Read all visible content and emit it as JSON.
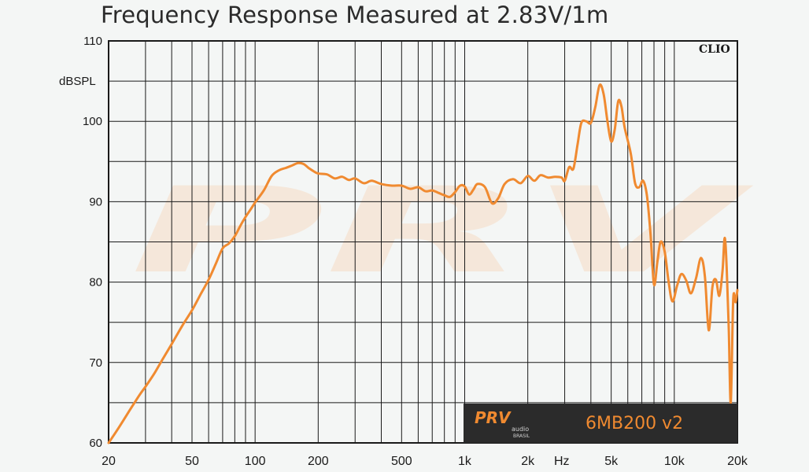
{
  "title": "Frequency Response Measured at 2.83V/1m",
  "chart_data": {
    "type": "line",
    "title": "Frequency Response Measured at 2.83V/1m",
    "xlabel": "Hz",
    "ylabel": "dBSPL",
    "x_scale": "log",
    "xlim": [
      20,
      20000
    ],
    "ylim": [
      60,
      110
    ],
    "grid": true,
    "y_ticks": [
      "110",
      "100",
      "90",
      "80",
      "70",
      "60"
    ],
    "x_ticks": [
      {
        "value": 20,
        "label": "20"
      },
      {
        "value": 50,
        "label": "50"
      },
      {
        "value": 100,
        "label": "100"
      },
      {
        "value": 200,
        "label": "200"
      },
      {
        "value": 500,
        "label": "500"
      },
      {
        "value": 1000,
        "label": "1k"
      },
      {
        "value": 2000,
        "label": "2k"
      },
      {
        "value": 5000,
        "label": "5k"
      },
      {
        "value": 10000,
        "label": "10k"
      },
      {
        "value": 20000,
        "label": "20k"
      }
    ],
    "series": [
      {
        "color": "#f08a30",
        "points": [
          [
            20,
            60.0
          ],
          [
            22,
            61.6
          ],
          [
            25,
            63.9
          ],
          [
            28,
            65.9
          ],
          [
            30,
            67.0
          ],
          [
            33,
            68.6
          ],
          [
            36,
            70.3
          ],
          [
            40,
            72.3
          ],
          [
            45,
            74.6
          ],
          [
            50,
            76.5
          ],
          [
            55,
            78.5
          ],
          [
            60,
            80.3
          ],
          [
            65,
            82.3
          ],
          [
            70,
            84.2
          ],
          [
            75,
            84.8
          ],
          [
            80,
            85.7
          ],
          [
            85,
            87.0
          ],
          [
            90,
            88.1
          ],
          [
            95,
            89.0
          ],
          [
            100,
            89.9
          ],
          [
            110,
            91.4
          ],
          [
            120,
            93.2
          ],
          [
            130,
            93.9
          ],
          [
            140,
            94.2
          ],
          [
            150,
            94.5
          ],
          [
            160,
            94.8
          ],
          [
            170,
            94.7
          ],
          [
            180,
            94.2
          ],
          [
            190,
            93.8
          ],
          [
            200,
            93.5
          ],
          [
            220,
            93.4
          ],
          [
            240,
            92.9
          ],
          [
            260,
            93.1
          ],
          [
            280,
            92.7
          ],
          [
            300,
            92.9
          ],
          [
            330,
            92.3
          ],
          [
            360,
            92.6
          ],
          [
            400,
            92.2
          ],
          [
            450,
            92.0
          ],
          [
            500,
            92.0
          ],
          [
            550,
            91.6
          ],
          [
            600,
            91.8
          ],
          [
            650,
            91.3
          ],
          [
            700,
            91.4
          ],
          [
            750,
            91.1
          ],
          [
            800,
            90.8
          ],
          [
            850,
            90.6
          ],
          [
            900,
            91.2
          ],
          [
            950,
            92.0
          ],
          [
            1000,
            91.9
          ],
          [
            1050,
            90.9
          ],
          [
            1100,
            91.5
          ],
          [
            1150,
            92.2
          ],
          [
            1250,
            91.8
          ],
          [
            1350,
            89.8
          ],
          [
            1450,
            90.5
          ],
          [
            1550,
            92.2
          ],
          [
            1700,
            92.8
          ],
          [
            1850,
            92.3
          ],
          [
            2000,
            93.2
          ],
          [
            2150,
            92.6
          ],
          [
            2300,
            93.3
          ],
          [
            2500,
            93.0
          ],
          [
            2700,
            93.1
          ],
          [
            2900,
            93.0
          ],
          [
            3000,
            92.6
          ],
          [
            3150,
            94.3
          ],
          [
            3300,
            94.1
          ],
          [
            3450,
            97.0
          ],
          [
            3600,
            99.8
          ],
          [
            3800,
            100.0
          ],
          [
            4000,
            99.8
          ],
          [
            4200,
            101.8
          ],
          [
            4400,
            104.5
          ],
          [
            4600,
            103.4
          ],
          [
            4800,
            100.0
          ],
          [
            5000,
            97.5
          ],
          [
            5200,
            99.0
          ],
          [
            5400,
            102.5
          ],
          [
            5600,
            101.8
          ],
          [
            5800,
            99.2
          ],
          [
            6200,
            96.0
          ],
          [
            6500,
            92.3
          ],
          [
            6800,
            91.8
          ],
          [
            7100,
            92.6
          ],
          [
            7400,
            90.8
          ],
          [
            7700,
            86.0
          ],
          [
            8000,
            79.7
          ],
          [
            8300,
            82.5
          ],
          [
            8600,
            85.0
          ],
          [
            9000,
            83.8
          ],
          [
            9400,
            80.0
          ],
          [
            9800,
            77.6
          ],
          [
            10300,
            79.5
          ],
          [
            10800,
            81.0
          ],
          [
            11400,
            80.2
          ],
          [
            12000,
            78.6
          ],
          [
            12700,
            80.5
          ],
          [
            13400,
            83.0
          ],
          [
            14000,
            80.7
          ],
          [
            14600,
            74.0
          ],
          [
            15200,
            79.4
          ],
          [
            15800,
            80.3
          ],
          [
            16400,
            78.3
          ],
          [
            17000,
            81.5
          ],
          [
            17400,
            85.5
          ],
          [
            17800,
            81.5
          ],
          [
            18200,
            74.0
          ],
          [
            18600,
            65.0
          ],
          [
            19100,
            77.8
          ],
          [
            19600,
            77.5
          ],
          [
            20000,
            79.0
          ]
        ]
      }
    ]
  },
  "clio_label": "CLIO",
  "watermark_text": "PRV",
  "logo": {
    "brand": "PRV",
    "sub1": "audio",
    "sub2": "BRASIL"
  },
  "model_name": "6MB200 v2",
  "colors": {
    "curve": "#f08a30",
    "background": "#f4f6f5",
    "grid": "#1a1a1a",
    "badge_bg": "#2b2b2b"
  }
}
